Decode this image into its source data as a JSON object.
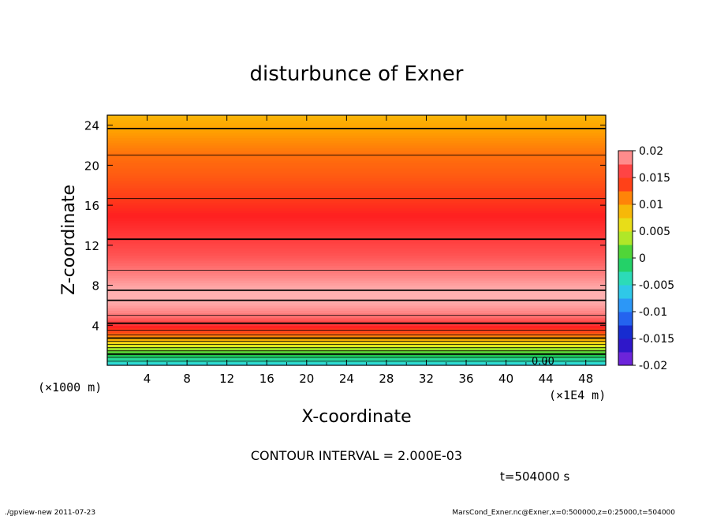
{
  "chart_data": {
    "type": "heatmap",
    "title": "disturbunce of Exner",
    "xlabel": "X-coordinate",
    "ylabel": "Z-coordinate",
    "x_unit_left": "(×1000 m)",
    "x_unit_right": "(×1E4 m)",
    "x_ticks": [
      "4",
      "8",
      "12",
      "16",
      "20",
      "24",
      "28",
      "32",
      "36",
      "40",
      "44",
      "48"
    ],
    "y_ticks": [
      "4",
      "8",
      "12",
      "16",
      "20",
      "24"
    ],
    "xlim": [
      0,
      50
    ],
    "ylim": [
      0,
      25
    ],
    "colorbar_ticks": [
      "0.02",
      "0.015",
      "0.01",
      "0.005",
      "0",
      "-0.005",
      "-0.01",
      "-0.015",
      "-0.02"
    ],
    "colorbar_range": [
      -0.02,
      0.02
    ],
    "contour_interval": "CONTOUR INTERVAL = 2.000E-03",
    "time_label": "t=504000 s",
    "contour_label": "0.00",
    "profile": [
      {
        "z": 0,
        "v": -0.006
      },
      {
        "z": 0.8,
        "v": -0.002
      },
      {
        "z": 1.6,
        "v": 0.003
      },
      {
        "z": 2.4,
        "v": 0.008
      },
      {
        "z": 3.2,
        "v": 0.013
      },
      {
        "z": 4,
        "v": 0.0155
      },
      {
        "z": 5,
        "v": 0.018
      },
      {
        "z": 6,
        "v": 0.0195
      },
      {
        "z": 7,
        "v": 0.0205
      },
      {
        "z": 8,
        "v": 0.0195
      },
      {
        "z": 9.5,
        "v": 0.018
      },
      {
        "z": 11,
        "v": 0.0168
      },
      {
        "z": 13,
        "v": 0.0158
      },
      {
        "z": 15,
        "v": 0.015
      },
      {
        "z": 17,
        "v": 0.0138
      },
      {
        "z": 19,
        "v": 0.0128
      },
      {
        "z": 21,
        "v": 0.012
      },
      {
        "z": 23,
        "v": 0.0105
      },
      {
        "z": 25,
        "v": 0.009
      }
    ],
    "colormap": [
      {
        "v": -0.02,
        "color": "#8a2be2"
      },
      {
        "v": -0.015,
        "color": "#1010c0"
      },
      {
        "v": -0.01,
        "color": "#2a7fff"
      },
      {
        "v": -0.005,
        "color": "#30e0e0"
      },
      {
        "v": 0,
        "color": "#20cc40"
      },
      {
        "v": 0.005,
        "color": "#e0f020"
      },
      {
        "v": 0.01,
        "color": "#ffa500"
      },
      {
        "v": 0.015,
        "color": "#ff2020"
      },
      {
        "v": 0.02,
        "color": "#ffb0b0"
      }
    ],
    "grid": false
  },
  "footer": {
    "left": "./gpview-new  2011-07-23",
    "right": "MarsCond_Exner.nc@Exner,x=0:500000,z=0:25000,t=504000"
  }
}
